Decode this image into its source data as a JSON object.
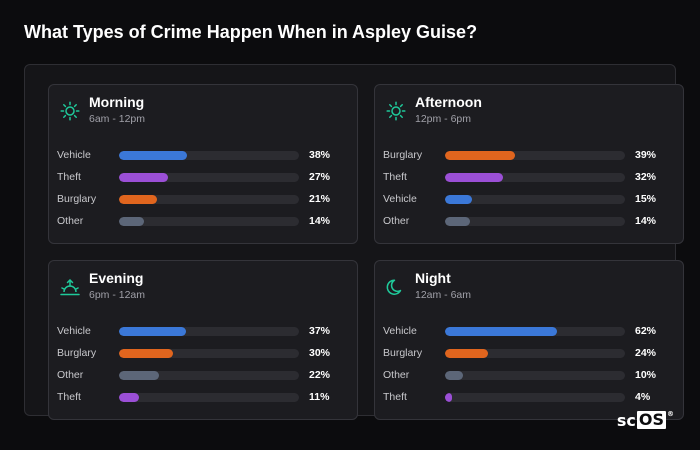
{
  "title": "What Types of Crime Happen When in Aspley Guise?",
  "logo": {
    "text_plain": "sc",
    "text_boxed": "OS",
    "reg": "®"
  },
  "colors": {
    "Vehicle": "#3b78d8",
    "Theft": "#9b4fd6",
    "Burglary": "#e0651e",
    "Other": "#5c6678",
    "icon": "#1fc99a"
  },
  "chart_data": [
    {
      "type": "bar",
      "title": "Morning",
      "subtitle": "6am - 12pm",
      "icon": "sun-icon",
      "categories": [
        "Vehicle",
        "Theft",
        "Burglary",
        "Other"
      ],
      "values": [
        38,
        27,
        21,
        14
      ],
      "value_labels": [
        "38%",
        "27%",
        "21%",
        "14%"
      ]
    },
    {
      "type": "bar",
      "title": "Afternoon",
      "subtitle": "12pm - 6pm",
      "icon": "sun-icon",
      "categories": [
        "Burglary",
        "Theft",
        "Vehicle",
        "Other"
      ],
      "values": [
        39,
        32,
        15,
        14
      ],
      "value_labels": [
        "39%",
        "32%",
        "15%",
        "14%"
      ]
    },
    {
      "type": "bar",
      "title": "Evening",
      "subtitle": "6pm - 12am",
      "icon": "sunset-icon",
      "categories": [
        "Vehicle",
        "Burglary",
        "Other",
        "Theft"
      ],
      "values": [
        37,
        30,
        22,
        11
      ],
      "value_labels": [
        "37%",
        "30%",
        "22%",
        "11%"
      ]
    },
    {
      "type": "bar",
      "title": "Night",
      "subtitle": "12am - 6am",
      "icon": "moon-icon",
      "categories": [
        "Vehicle",
        "Burglary",
        "Other",
        "Theft"
      ],
      "values": [
        62,
        24,
        10,
        4
      ],
      "value_labels": [
        "62%",
        "24%",
        "10%",
        "4%"
      ]
    }
  ]
}
